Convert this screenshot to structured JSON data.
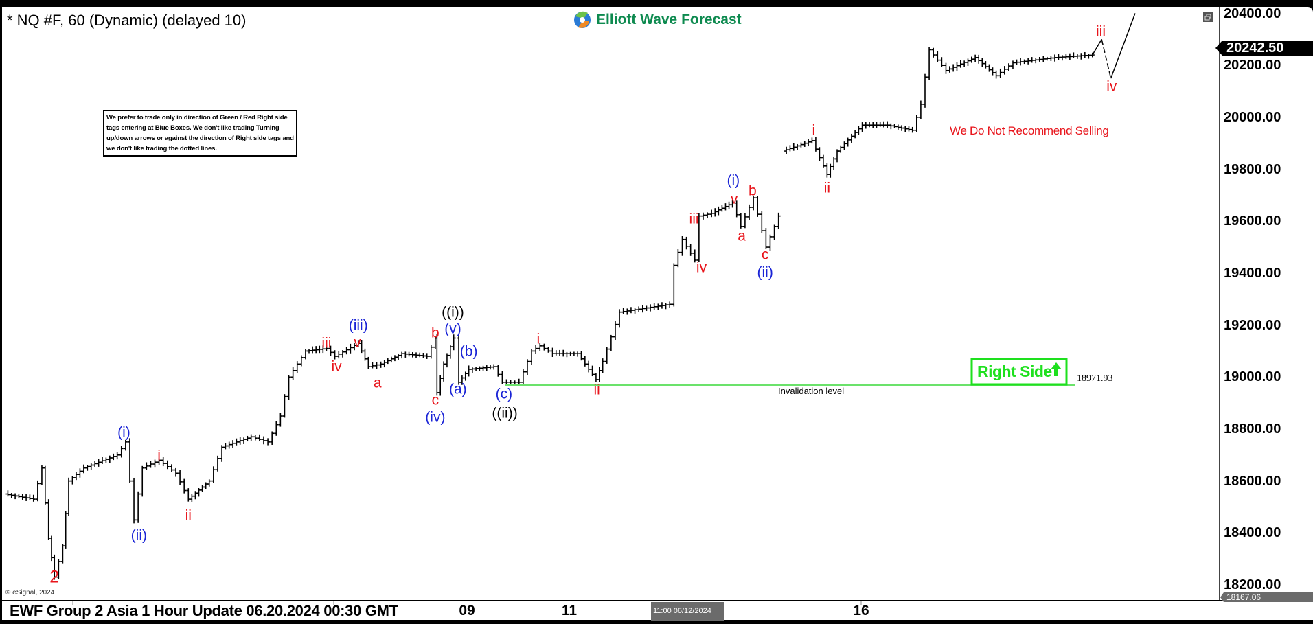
{
  "header": {
    "symbol_title": "* NQ #F, 60 (Dynamic) (delayed 10)",
    "logo_text": "Elliott Wave Forecast",
    "brand_color": "#0d8a4f"
  },
  "note_box": "We prefer to trade only in direction of Green / Red Right side tags entering at Blue Boxes. We don't like trading Turning up/down arrows or against the direction of Right side tags and we don't like trading the dotted lines.",
  "footer": {
    "update_title": "EWF Group 2 Asia 1 Hour Update 06.20.2024 00:30 GMT",
    "cursor_time": "11:00 06/12/2024",
    "copyright": "© eSignal, 2024"
  },
  "annotations": {
    "recommendation": "We Do Not Recommend Selling",
    "right_side_tag": "Right Side",
    "right_side_color": "#1ee01e",
    "invalidation_label": "Invalidation level",
    "invalidation_value": "18971.93",
    "waves": [
      "2",
      "(i)",
      "(ii)",
      "i",
      "ii",
      "iii",
      "iv",
      "(iii)",
      "v",
      "a",
      "b",
      "c",
      "(iv)",
      "((i))",
      "(v)",
      "(b)",
      "(a)",
      "(c)",
      "((ii))",
      "i",
      "ii",
      "iii",
      "iv",
      "(i)",
      "v",
      "b",
      "a",
      "c",
      "(ii)",
      "i",
      "ii",
      "iii",
      "iv"
    ]
  },
  "chart_data": {
    "type": "ohlc",
    "instrument": "NQ #F",
    "interval": "60",
    "ylim": [
      18167.06,
      20400
    ],
    "y_ticks": [
      "20400.00",
      "20200.00",
      "20000.00",
      "19800.00",
      "19600.00",
      "19400.00",
      "19200.00",
      "19000.00",
      "18800.00",
      "18600.00",
      "18400.00",
      "18200.00"
    ],
    "x_ticks": [
      "09",
      "11",
      "16"
    ],
    "last_price": "20242.50",
    "low_marker": "18167.06",
    "invalidation_level": 18971.93,
    "price_path": [
      18550,
      18530,
      18650,
      18380,
      18230,
      18350,
      18600,
      18650,
      18700,
      18750,
      18450,
      18650,
      18680,
      18630,
      18530,
      18600,
      18730,
      18770,
      18750,
      18850,
      19000,
      19100,
      19110,
      19080,
      19130,
      19040,
      19050,
      19090,
      19080,
      19150,
      18940,
      19050,
      19150,
      18980,
      19030,
      19040,
      18980,
      18980,
      19100,
      19120,
      19090,
      19090,
      18990,
      19060,
      19250,
      19280,
      19430,
      19530,
      19450,
      19620,
      19630,
      19670,
      19580,
      19690,
      19500,
      19620,
      null,
      19870,
      19910,
      19780,
      19870,
      19970,
      19970,
      19950,
      20050,
      20260,
      20180,
      20230,
      20160,
      20210,
      20230,
      20240
    ],
    "projection": [
      20240,
      20300,
      20150,
      20400
    ],
    "grid": false
  }
}
